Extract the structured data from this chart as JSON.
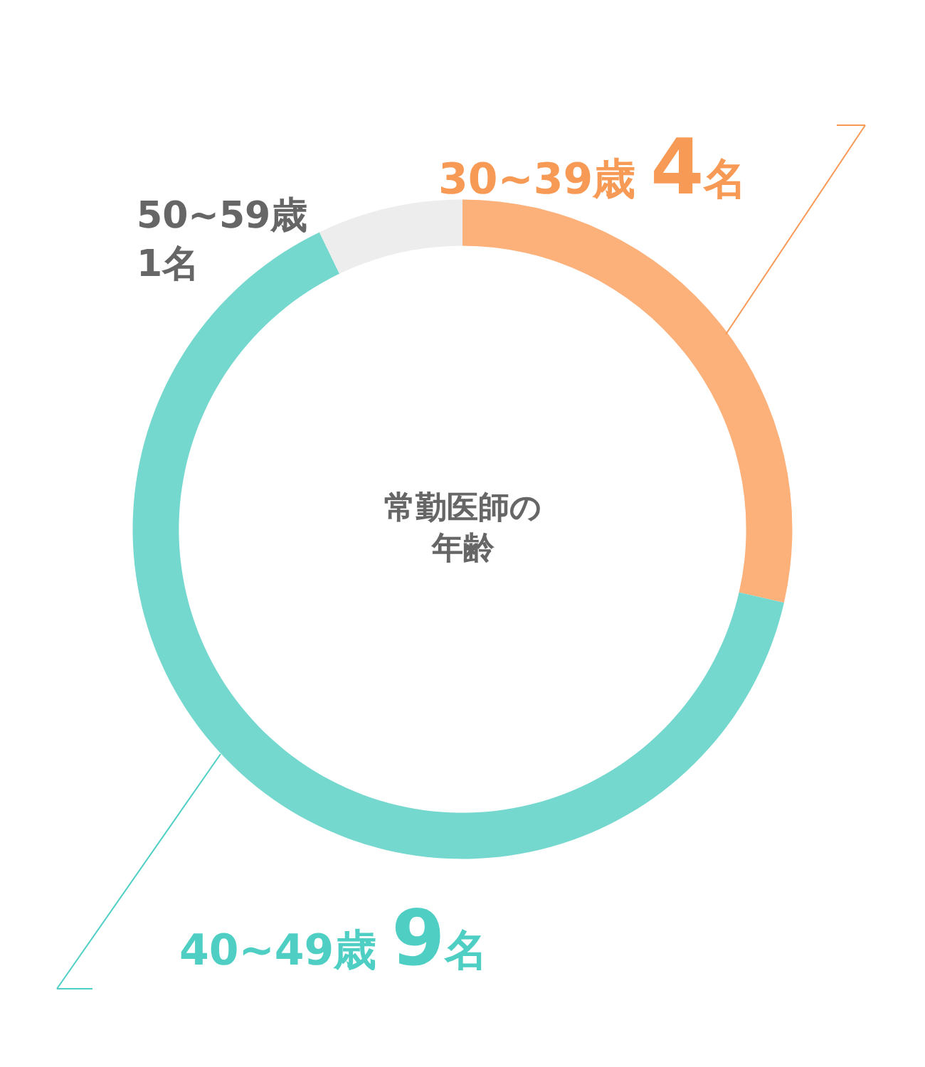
{
  "chart_data": {
    "type": "donut",
    "title": "常勤医師の年齢",
    "categories": [
      "30~39歳",
      "40~49歳",
      "50~59歳"
    ],
    "values": [
      4,
      9,
      1
    ],
    "value_labels": [
      "4名",
      "9名",
      "1名"
    ],
    "colors": [
      "#fcb07a",
      "#74d8cf",
      "#ededed"
    ],
    "legend": false
  }
}
